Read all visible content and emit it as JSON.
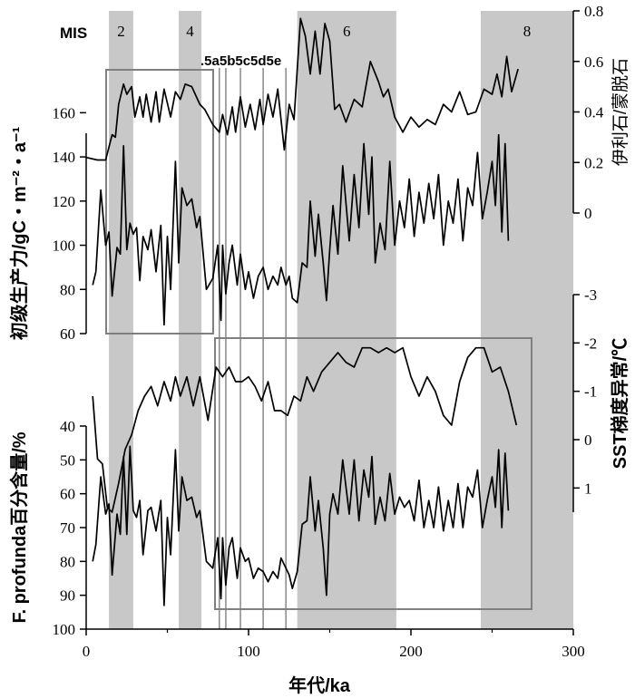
{
  "chart_data": {
    "type": "line",
    "xlabel": "年代/ka",
    "xlim": [
      0,
      300
    ],
    "x_ticks": [
      "0",
      "100",
      "200",
      "300"
    ],
    "mis_label": "MIS",
    "mis_stages": [
      {
        "label": "2",
        "from": 14,
        "to": 29,
        "shaded": true
      },
      {
        "label": "4",
        "from": 57,
        "to": 71,
        "shaded": true
      },
      {
        "label": "6",
        "from": 130,
        "to": 191,
        "shaded": true
      },
      {
        "label": "8",
        "from": 243,
        "to": 300,
        "shaded": true
      }
    ],
    "substage_text": ".5a5b5c5d5e",
    "substage_lines": [
      82,
      86,
      95,
      109,
      123
    ],
    "panels": [
      {
        "name": "clay",
        "axis_label": "伊利石/蒙脱石",
        "ylim": [
          0,
          0.8
        ],
        "y_ticks": [
          "0",
          "0.2",
          "0.4",
          "0.6",
          "0.8"
        ],
        "x": [
          0,
          7,
          12,
          16,
          18,
          20,
          23,
          25,
          28,
          30,
          33,
          35,
          37,
          40,
          43,
          45,
          48,
          52,
          55,
          58,
          61,
          65,
          70,
          73,
          78,
          82,
          84,
          87,
          90,
          92,
          95,
          98,
          101,
          104,
          107,
          109,
          112,
          115,
          118,
          122,
          125,
          128,
          132,
          135,
          138,
          141,
          144,
          147,
          150,
          153,
          156,
          160,
          165,
          170,
          175,
          180,
          183,
          186,
          190,
          195,
          200,
          205,
          210,
          215,
          220,
          225,
          230,
          235,
          240,
          245,
          250,
          253,
          256,
          259,
          262,
          266
        ],
        "values": [
          0.22,
          0.21,
          0.21,
          0.31,
          0.3,
          0.43,
          0.51,
          0.47,
          0.5,
          0.38,
          0.46,
          0.38,
          0.47,
          0.36,
          0.48,
          0.36,
          0.49,
          0.38,
          0.48,
          0.45,
          0.51,
          0.5,
          0.43,
          0.41,
          0.35,
          0.32,
          0.39,
          0.31,
          0.42,
          0.32,
          0.46,
          0.34,
          0.43,
          0.33,
          0.45,
          0.35,
          0.47,
          0.38,
          0.49,
          0.25,
          0.43,
          0.37,
          0.77,
          0.7,
          0.55,
          0.72,
          0.55,
          0.75,
          0.68,
          0.41,
          0.43,
          0.36,
          0.45,
          0.42,
          0.6,
          0.52,
          0.46,
          0.49,
          0.38,
          0.32,
          0.38,
          0.34,
          0.37,
          0.35,
          0.43,
          0.4,
          0.48,
          0.39,
          0.4,
          0.49,
          0.47,
          0.55,
          0.46,
          0.62,
          0.48,
          0.57
        ]
      },
      {
        "name": "productivity",
        "axis_label": "初级生产力/gC・m⁻²・a⁻¹",
        "ylim": [
          60,
          170
        ],
        "y_ticks": [
          "60",
          "80",
          "100",
          "120",
          "140",
          "160"
        ],
        "x": [
          4,
          6,
          9,
          12,
          14,
          16,
          19,
          21,
          23,
          25,
          27,
          29,
          31,
          33,
          35,
          38,
          40,
          43,
          46,
          48,
          50,
          52,
          55,
          57,
          59,
          62,
          65,
          68,
          70,
          74,
          78,
          81,
          83,
          84,
          86,
          88,
          90,
          93,
          95,
          98,
          100,
          103,
          106,
          109,
          112,
          115,
          118,
          120,
          123,
          125,
          127,
          130,
          133,
          136,
          138,
          141,
          143,
          146,
          148,
          150,
          152,
          155,
          158,
          162,
          165,
          168,
          171,
          174,
          176,
          178,
          181,
          184,
          187,
          190,
          193,
          196,
          199,
          202,
          205,
          208,
          211,
          214,
          217,
          220,
          223,
          226,
          229,
          232,
          235,
          238,
          241,
          244,
          247,
          250,
          252,
          254,
          256,
          258,
          260
        ],
        "values": [
          82,
          88,
          125,
          100,
          106,
          77,
          99,
          96,
          145,
          98,
          110,
          105,
          108,
          84,
          104,
          98,
          107,
          88,
          109,
          64,
          104,
          80,
          138,
          92,
          126,
          118,
          121,
          108,
          113,
          80,
          85,
          100,
          66,
          100,
          78,
          92,
          100,
          82,
          96,
          80,
          88,
          76,
          86,
          90,
          80,
          86,
          82,
          90,
          82,
          86,
          76,
          74,
          92,
          90,
          120,
          95,
          114,
          92,
          75,
          98,
          118,
          96,
          136,
          102,
          132,
          108,
          146,
          114,
          140,
          92,
          110,
          98,
          138,
          100,
          120,
          108,
          130,
          104,
          124,
          110,
          128,
          112,
          132,
          100,
          120,
          110,
          130,
          102,
          126,
          118,
          142,
          112,
          124,
          138,
          118,
          150,
          106,
          146,
          102
        ]
      },
      {
        "name": "sst_gradient",
        "axis_label": "SST梯度异常/℃",
        "ylim": [
          -3,
          1.5
        ],
        "y_ticks": [
          "-3",
          "-2",
          "-1",
          "0",
          "1"
        ],
        "reversed": true,
        "x": [
          4,
          7,
          10,
          13,
          16,
          20,
          24,
          28,
          32,
          36,
          40,
          44,
          48,
          52,
          55,
          58,
          62,
          66,
          70,
          75,
          80,
          84,
          88,
          92,
          96,
          100,
          104,
          108,
          112,
          116,
          120,
          124,
          128,
          132,
          136,
          140,
          145,
          150,
          155,
          160,
          165,
          170,
          175,
          180,
          185,
          190,
          195,
          200,
          205,
          210,
          215,
          220,
          225,
          230,
          235,
          240,
          245,
          250,
          255,
          260,
          265
        ],
        "values": [
          -0.9,
          0.4,
          0.5,
          1.4,
          1.5,
          0.9,
          0.2,
          -0.1,
          -0.6,
          -0.9,
          -1.1,
          -0.7,
          -1.2,
          -0.8,
          -1.3,
          -0.9,
          -1.3,
          -0.7,
          -1.3,
          -0.4,
          -1.5,
          -1.3,
          -1.5,
          -1.2,
          -1.2,
          -1.3,
          -1.1,
          -0.8,
          -1.2,
          -0.6,
          -0.6,
          -0.5,
          -0.9,
          -0.8,
          -1.3,
          -1.0,
          -1.4,
          -1.6,
          -1.8,
          -1.6,
          -1.5,
          -1.9,
          -1.9,
          -1.8,
          -1.9,
          -1.8,
          -1.9,
          -1.3,
          -0.9,
          -1.3,
          -1.0,
          -0.5,
          -0.3,
          -1.2,
          -1.7,
          -1.9,
          -1.9,
          -1.4,
          -1.5,
          -1.0,
          -0.3
        ]
      },
      {
        "name": "f_profunda",
        "axis_label": "F. profunda百分含量/%",
        "ylim": [
          40,
          100
        ],
        "y_ticks": [
          "40",
          "50",
          "60",
          "70",
          "80",
          "90",
          "100"
        ],
        "reversed": true,
        "x": [
          4,
          6,
          9,
          12,
          14,
          16,
          19,
          21,
          23,
          25,
          27,
          29,
          31,
          33,
          35,
          38,
          40,
          43,
          46,
          48,
          50,
          52,
          55,
          57,
          59,
          62,
          65,
          68,
          70,
          74,
          78,
          81,
          83,
          84,
          86,
          88,
          90,
          93,
          95,
          98,
          100,
          103,
          106,
          109,
          112,
          115,
          118,
          120,
          123,
          125,
          127,
          130,
          133,
          136,
          138,
          141,
          143,
          146,
          148,
          150,
          152,
          155,
          158,
          162,
          165,
          168,
          171,
          174,
          176,
          178,
          181,
          184,
          187,
          190,
          193,
          196,
          199,
          202,
          205,
          208,
          211,
          214,
          217,
          220,
          223,
          226,
          229,
          232,
          235,
          238,
          241,
          244,
          247,
          250,
          252,
          254,
          256,
          258,
          260
        ],
        "values": [
          80,
          75,
          55,
          66,
          63,
          84,
          66,
          72,
          49,
          72,
          46,
          65,
          67,
          62,
          78,
          65,
          64,
          71,
          62,
          93,
          67,
          78,
          47,
          71,
          55,
          62,
          61,
          67,
          65,
          80,
          82,
          73,
          91,
          73,
          87,
          76,
          73,
          85,
          76,
          80,
          79,
          85,
          82,
          83,
          86,
          83,
          85,
          79,
          82,
          84,
          88,
          83,
          69,
          68,
          55,
          71,
          62,
          76,
          90,
          66,
          60,
          66,
          50,
          66,
          50,
          68,
          53,
          61,
          49,
          69,
          61,
          68,
          54,
          66,
          61,
          64,
          62,
          68,
          56,
          70,
          62,
          70,
          58,
          71,
          62,
          70,
          57,
          70,
          58,
          61,
          53,
          70,
          62,
          55,
          64,
          47,
          70,
          48,
          65
        ]
      }
    ]
  }
}
